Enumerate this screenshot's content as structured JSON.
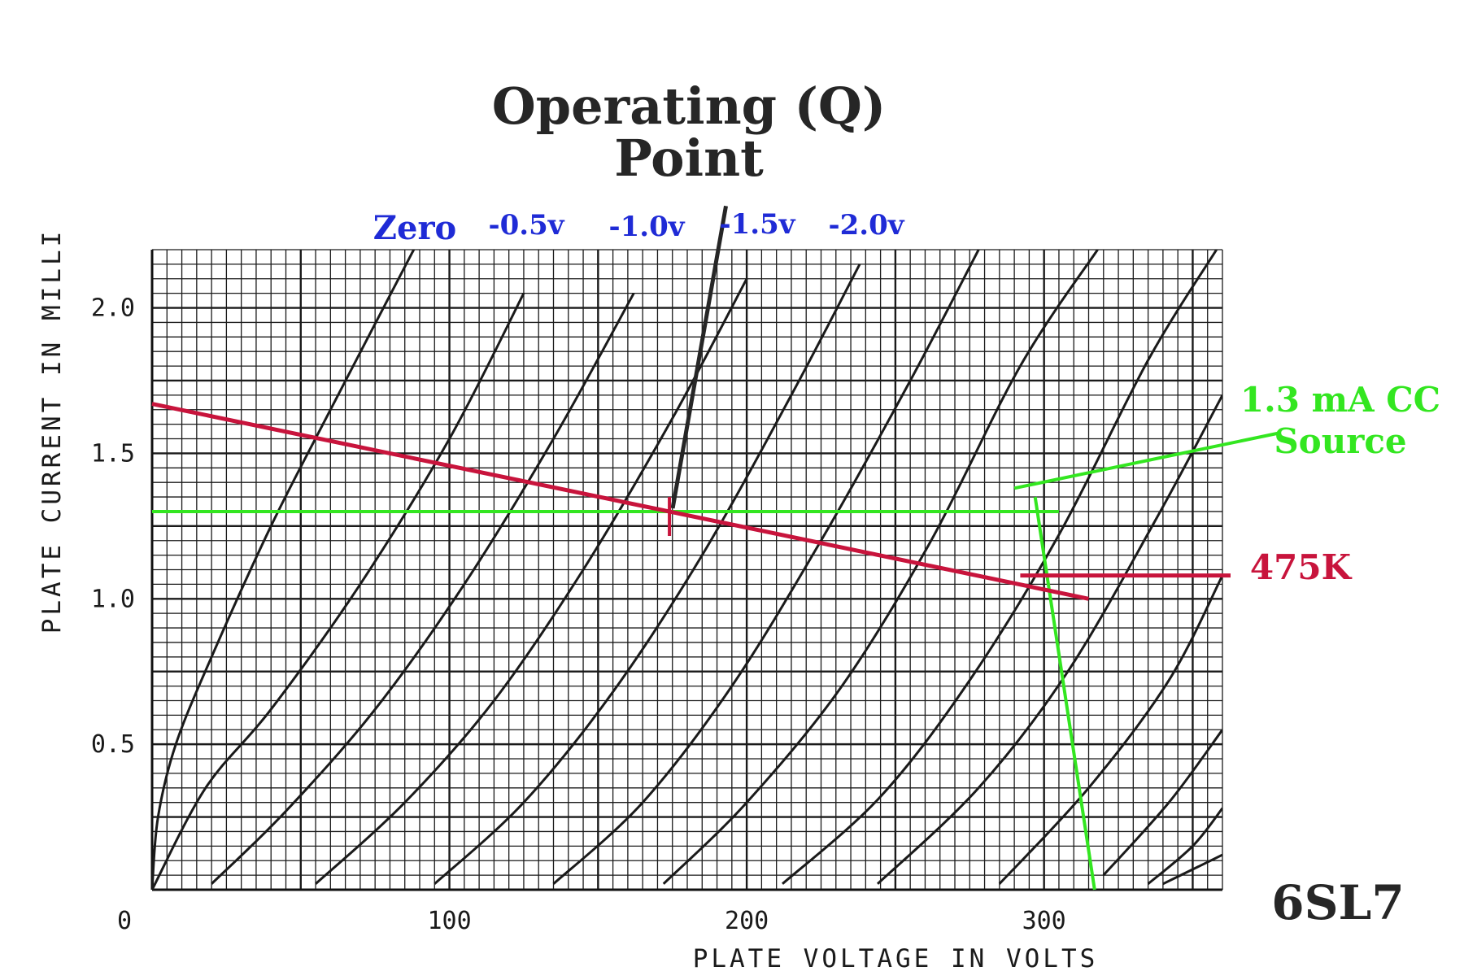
{
  "chart_data": {
    "type": "line",
    "title": "Operating (Q) Point",
    "title_lines": [
      "Operating (Q)",
      "Point"
    ],
    "tube_label": "6SL7",
    "xlabel": "PLATE VOLTAGE IN VOLTS",
    "ylabel": "PLATE CURRENT IN MILLI",
    "xlim": [
      0,
      360
    ],
    "ylim": [
      0,
      2.2
    ],
    "x_ticks": [
      {
        "value": 0,
        "label": "0"
      },
      {
        "value": 100,
        "label": "100"
      },
      {
        "value": 200,
        "label": "200"
      },
      {
        "value": 300,
        "label": "300"
      }
    ],
    "y_ticks": [
      {
        "value": 0.5,
        "label": "0.5"
      },
      {
        "value": 1.0,
        "label": "1.0"
      },
      {
        "value": 1.5,
        "label": "1.5"
      },
      {
        "value": 2.0,
        "label": "2.0"
      }
    ],
    "grid": true,
    "series": [
      {
        "name": "Zero",
        "labeled": true,
        "x": [
          0,
          2,
          8,
          20,
          40,
          60,
          88
        ],
        "y": [
          0,
          0.25,
          0.5,
          0.8,
          1.25,
          1.65,
          2.2
        ]
      },
      {
        "name": "-0.5v",
        "labeled": true,
        "x": [
          0,
          18,
          40,
          70,
          100,
          125
        ],
        "y": [
          0,
          0.35,
          0.62,
          1.05,
          1.55,
          2.05
        ]
      },
      {
        "name": "-1.0v",
        "labeled": true,
        "x": [
          20,
          45,
          75,
          105,
          135,
          162
        ],
        "y": [
          0.02,
          0.27,
          0.62,
          1.05,
          1.55,
          2.05
        ]
      },
      {
        "name": "-1.5v",
        "labeled": true,
        "x": [
          55,
          85,
          115,
          145,
          175,
          200
        ],
        "y": [
          0.02,
          0.3,
          0.65,
          1.1,
          1.62,
          2.1
        ]
      },
      {
        "name": "-2.0v",
        "labeled": true,
        "x": [
          95,
          125,
          155,
          185,
          215,
          238
        ],
        "y": [
          0.02,
          0.3,
          0.68,
          1.15,
          1.7,
          2.15
        ]
      },
      {
        "name": "",
        "labeled": false,
        "x": [
          135,
          165,
          195,
          225,
          255,
          278
        ],
        "y": [
          0.02,
          0.3,
          0.7,
          1.2,
          1.75,
          2.2
        ]
      },
      {
        "name": "",
        "labeled": false,
        "x": [
          172,
          200,
          232,
          262,
          292,
          318
        ],
        "y": [
          0.02,
          0.3,
          0.7,
          1.2,
          1.8,
          2.2
        ]
      },
      {
        "name": "",
        "labeled": false,
        "x": [
          212,
          245,
          275,
          305,
          335,
          358
        ],
        "y": [
          0.02,
          0.32,
          0.72,
          1.22,
          1.82,
          2.2
        ]
      },
      {
        "name": "",
        "labeled": false,
        "x": [
          244,
          278,
          308,
          338,
          360
        ],
        "y": [
          0.02,
          0.35,
          0.75,
          1.28,
          1.7
        ]
      },
      {
        "name": "",
        "labeled": false,
        "x": [
          285,
          315,
          342,
          360
        ],
        "y": [
          0.02,
          0.35,
          0.72,
          1.08
        ]
      },
      {
        "name": "",
        "labeled": false,
        "x": [
          320,
          342,
          360
        ],
        "y": [
          0.05,
          0.3,
          0.55
        ]
      },
      {
        "name": "",
        "labeled": false,
        "x": [
          335,
          350,
          360
        ],
        "y": [
          0.02,
          0.15,
          0.28
        ]
      },
      {
        "name": "",
        "labeled": false,
        "x": [
          340,
          352,
          360
        ],
        "y": [
          0.02,
          0.08,
          0.12
        ]
      }
    ],
    "annotations": {
      "load_line": {
        "label": "475K",
        "color": "#c8143c",
        "x": [
          0,
          315
        ],
        "y": [
          1.67,
          1.0
        ]
      },
      "cc_source": {
        "label_lines": [
          "1.3 mA CC",
          "Source"
        ],
        "color": "#33e620",
        "current": 1.3,
        "x": [
          0,
          305
        ]
      },
      "green_drop": {
        "x": [
          297,
          317
        ],
        "y": [
          1.35,
          0.0
        ]
      },
      "q_point": {
        "x": 174,
        "y": 1.3
      },
      "q_pointer_start": {
        "x": 193,
        "y": 2.35
      },
      "green_pointer": {
        "x1": 290,
        "y1": 1.38,
        "x2": 360,
        "y2": 1.57
      },
      "red_pointer": {
        "x1": 292,
        "y1": 1.08,
        "x2": 360,
        "y2": 1.08
      }
    },
    "curve_label_color": "#1f2bd6"
  }
}
